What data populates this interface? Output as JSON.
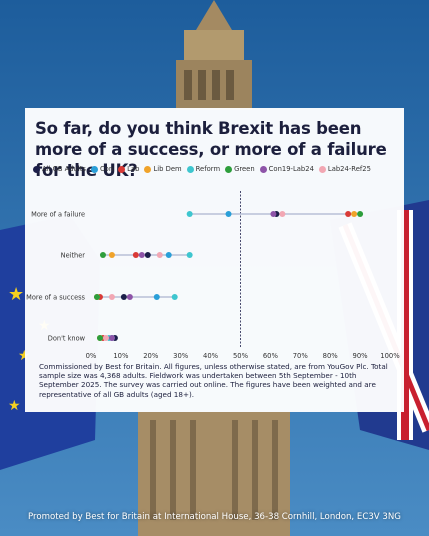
{
  "chart_data": {
    "type": "dot",
    "title": "So far, do you think Brexit has been more of a success, or more of a failure for the UK?",
    "categories": [
      "More of a failure",
      "Neither",
      "More of a success",
      "Don't know"
    ],
    "series": [
      {
        "name": "All GB Adults",
        "color": "#1c1f4a",
        "values": [
          62,
          19,
          11,
          8
        ]
      },
      {
        "name": "Con",
        "color": "#2a9fd8",
        "values": [
          46,
          26,
          22,
          7
        ]
      },
      {
        "name": "Lab",
        "color": "#d93a36",
        "values": [
          86,
          15,
          3,
          4
        ]
      },
      {
        "name": "Lib Dem",
        "color": "#f0a32a",
        "values": [
          88,
          7,
          2,
          3
        ]
      },
      {
        "name": "Reform",
        "color": "#3ec6cf",
        "values": [
          33,
          33,
          28,
          6
        ]
      },
      {
        "name": "Green",
        "color": "#2e9e3c",
        "values": [
          90,
          4,
          2,
          3
        ]
      },
      {
        "name": "Con19-Lab24",
        "color": "#8e54a8",
        "values": [
          61,
          17,
          13,
          7
        ]
      },
      {
        "name": "Lab24-Ref25",
        "color": "#f2a7b3",
        "values": [
          64,
          23,
          7,
          5
        ]
      }
    ],
    "xlim": [
      0,
      100
    ],
    "x_ticks": [
      "0%",
      "10%",
      "20%",
      "30%",
      "40%",
      "50%",
      "60%",
      "70%",
      "80%",
      "90%",
      "100%"
    ],
    "reference_line": 50,
    "grid": false,
    "legend_position": "top"
  },
  "notes": "Commissioned by Best for Britain. All figures, unless otherwise stated, are from YouGov Plc. Total sample size was 4,368 adults. Fieldwork was undertaken between 5th September - 10th September 2025. The survey was carried out online. The figures have been weighted and are representative of all GB adults (aged 18+).",
  "footer": "Promoted by Best for Britain at International House, 36-38 Cornhill, London, EC3V 3NG"
}
